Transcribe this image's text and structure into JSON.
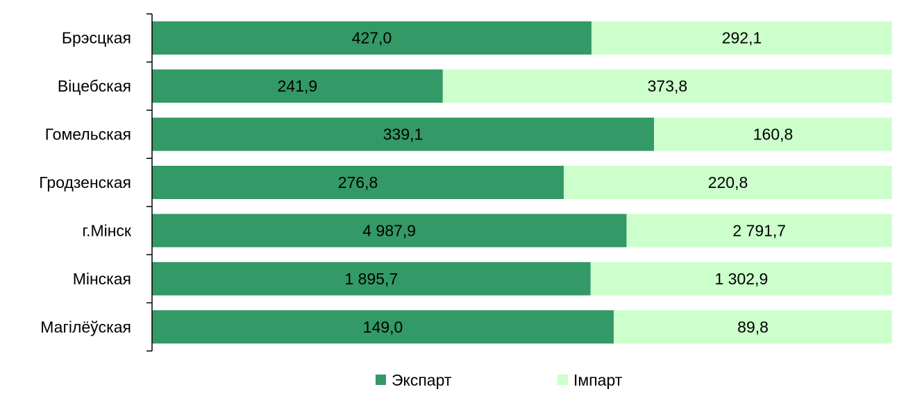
{
  "chart_data": {
    "type": "bar",
    "orientation": "horizontal",
    "stacking": "percent",
    "categories": [
      "Брэсцкая",
      "Віцебская",
      "Гомельская",
      "Гродзенская",
      "г.Мінск",
      "Мінская",
      "Магілёўская"
    ],
    "series": [
      {
        "name": "Экспарт",
        "color": "#339966",
        "values": [
          427.0,
          241.9,
          339.1,
          276.8,
          4987.9,
          1895.7,
          149.0
        ],
        "labels": [
          "427,0",
          "241,9",
          "339,1",
          "276,8",
          "4 987,9",
          "1 895,7",
          "149,0"
        ]
      },
      {
        "name": "Імпарт",
        "color": "#ccffcc",
        "values": [
          292.1,
          373.8,
          160.8,
          220.8,
          2791.7,
          1302.9,
          89.8
        ],
        "labels": [
          "292,1",
          "373,8",
          "160,8",
          "220,8",
          "2 791,7",
          "1 302,9",
          "89,8"
        ]
      }
    ],
    "legend_position": "bottom",
    "grid": false
  }
}
